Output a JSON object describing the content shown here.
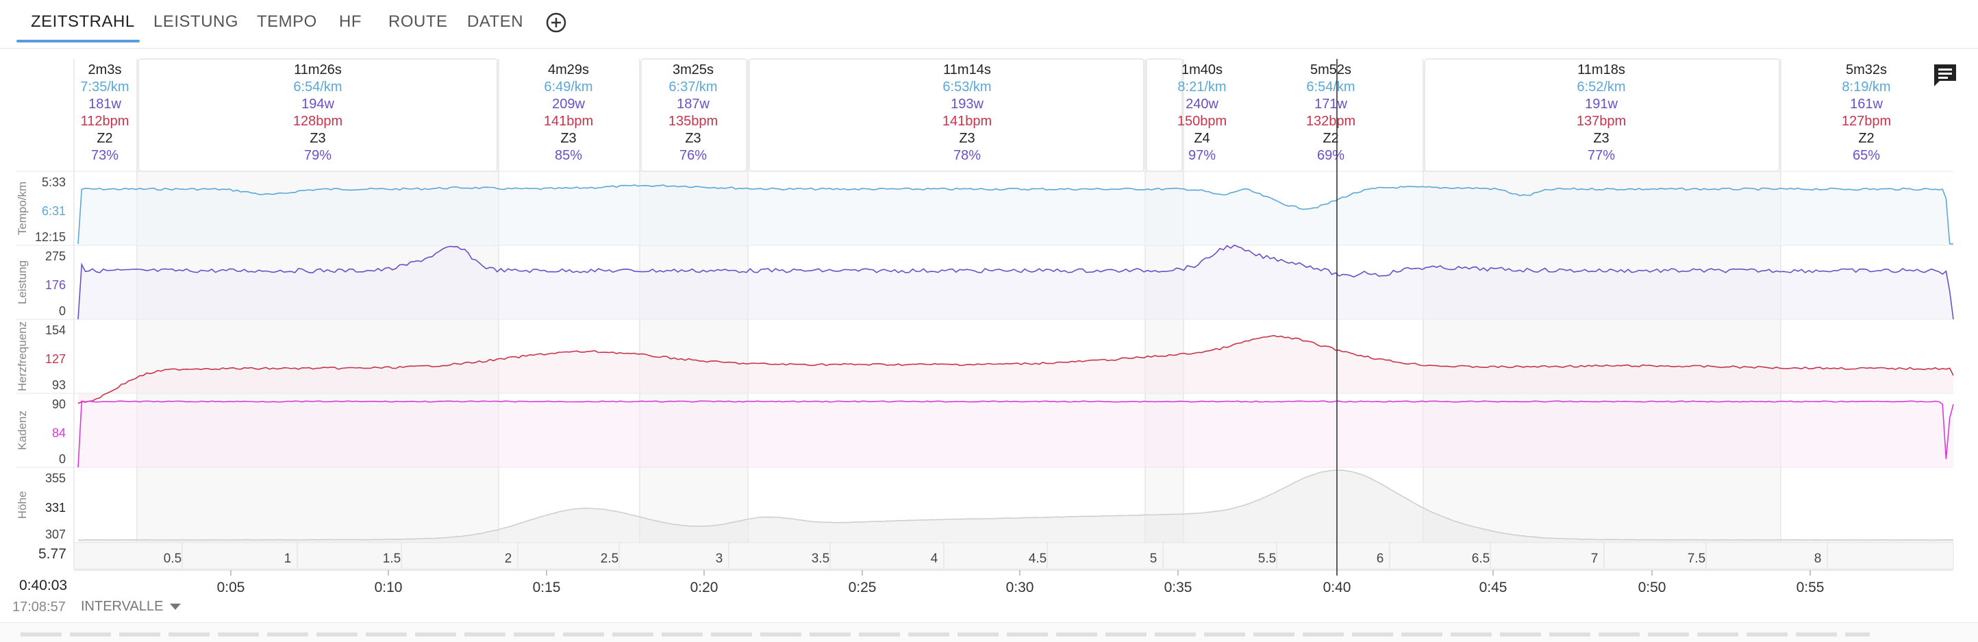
{
  "tabs": [
    {
      "label": "ZEITSTRAHL",
      "active": true
    },
    {
      "label": "LEISTUNG"
    },
    {
      "label": "TEMPO"
    },
    {
      "label": "HF"
    },
    {
      "label": "ROUTE"
    },
    {
      "label": "DATEN"
    }
  ],
  "colors": {
    "pace": "#5aa8d8",
    "power": "#6b4fc8",
    "hr": "#c8344c",
    "cadence": "#d83ad8",
    "altitude": "#c8c8c8",
    "accent": "#5b9be0"
  },
  "laps": [
    {
      "duration": "2m3s",
      "pace": "7:35/km",
      "power": "181w",
      "hr": "112bpm",
      "zone": "Z2",
      "pct": "73%"
    },
    {
      "duration": "11m26s",
      "pace": "6:54/km",
      "power": "194w",
      "hr": "128bpm",
      "zone": "Z3",
      "pct": "79%"
    },
    {
      "duration": "4m29s",
      "pace": "6:49/km",
      "power": "209w",
      "hr": "141bpm",
      "zone": "Z3",
      "pct": "85%"
    },
    {
      "duration": "3m25s",
      "pace": "6:37/km",
      "power": "187w",
      "hr": "135bpm",
      "zone": "Z3",
      "pct": "76%"
    },
    {
      "duration": "11m14s",
      "pace": "6:53/km",
      "power": "193w",
      "hr": "141bpm",
      "zone": "Z3",
      "pct": "78%"
    },
    {
      "duration": "1m40s",
      "pace": "8:21/km",
      "power": "240w",
      "hr": "150bpm",
      "zone": "Z4",
      "pct": "97%"
    },
    {
      "duration": "5m52s",
      "pace": "6:54/km",
      "power": "171w",
      "hr": "132bpm",
      "zone": "Z2",
      "pct": "69%"
    },
    {
      "duration": "11m18s",
      "pace": "6:52/km",
      "power": "191w",
      "hr": "137bpm",
      "zone": "Z3",
      "pct": "77%"
    },
    {
      "duration": "5m32s",
      "pace": "8:19/km",
      "power": "161w",
      "hr": "127bpm",
      "zone": "Z2",
      "pct": "65%"
    }
  ],
  "panels": [
    {
      "name": "Tempo/km",
      "ticks": [
        "5:33",
        "6:31",
        "12:15"
      ]
    },
    {
      "name": "Leistung",
      "ticks": [
        "275",
        "176",
        "0"
      ]
    },
    {
      "name": "Herzfrequenz",
      "ticks": [
        "154",
        "127",
        "93"
      ]
    },
    {
      "name": "Kadenz",
      "ticks": [
        "90",
        "84",
        "0"
      ]
    },
    {
      "name": "Höhe",
      "ticks": [
        "355",
        "331",
        "307"
      ]
    }
  ],
  "distance_axis": {
    "start": "5.77",
    "labels": [
      "0.5",
      "1",
      "1.5",
      "2",
      "2.5",
      "3",
      "3.5",
      "4",
      "4.5",
      "5",
      "5.5",
      "6",
      "6.5",
      "7",
      "7.5",
      "8"
    ]
  },
  "time_axis": {
    "labels": [
      "0:05",
      "0:10",
      "0:15",
      "0:20",
      "0:25",
      "0:30",
      "0:35",
      "0:40",
      "0:45",
      "0:50",
      "0:55"
    ]
  },
  "cursor": {
    "time": "0:40:03",
    "clock": "17:08:57"
  },
  "intervals_label": "INTERVALLE",
  "icons": {
    "add": "add-circle-icon",
    "comment": "comment-icon",
    "dropdown": "caret-down-icon"
  }
}
